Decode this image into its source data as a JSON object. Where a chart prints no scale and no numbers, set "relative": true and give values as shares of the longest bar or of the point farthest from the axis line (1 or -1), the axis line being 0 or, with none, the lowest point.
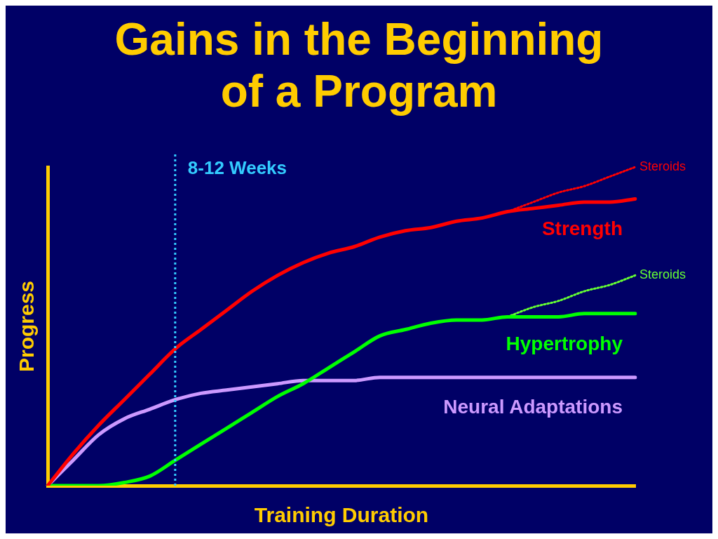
{
  "chart_data": {
    "type": "line",
    "title": "Gains in the Beginning of a Program",
    "xlabel": "Training Duration",
    "ylabel": "Progress",
    "relative": true,
    "legend": false,
    "grid": false,
    "categories": [
      null,
      null,
      null,
      null,
      null,
      null,
      null,
      null,
      null,
      null,
      null,
      null,
      null,
      null,
      null,
      null,
      null,
      null,
      null,
      null,
      null,
      null,
      null,
      null
    ],
    "series": [
      {
        "name": "Strength",
        "color": "#ff0000",
        "line_style": "solid",
        "values": [
          0,
          0.1,
          0.19,
          0.27,
          0.35,
          0.43,
          0.49,
          0.55,
          0.61,
          0.66,
          0.7,
          0.73,
          0.75,
          0.78,
          0.8,
          0.81,
          0.83,
          0.84,
          0.86,
          0.87,
          0.88,
          0.89,
          0.89,
          0.9
        ]
      },
      {
        "name": "Steroids",
        "color": "#ff0000",
        "line_style": "dotted",
        "values": [
          null,
          null,
          null,
          null,
          null,
          null,
          null,
          null,
          null,
          null,
          null,
          null,
          null,
          null,
          null,
          null,
          null,
          null,
          0.86,
          0.89,
          0.92,
          0.94,
          0.97,
          1.0
        ]
      },
      {
        "name": "Hypertrophy",
        "color": "#00ff00",
        "line_style": "solid",
        "values": [
          0,
          0,
          0,
          0.01,
          0.03,
          0.08,
          0.13,
          0.18,
          0.23,
          0.28,
          0.32,
          0.37,
          0.42,
          0.47,
          0.49,
          0.51,
          0.52,
          0.52,
          0.53,
          0.53,
          0.53,
          0.54,
          0.54,
          0.54
        ]
      },
      {
        "name": "Steroids",
        "color": "#66ff33",
        "line_style": "dotted",
        "values": [
          null,
          null,
          null,
          null,
          null,
          null,
          null,
          null,
          null,
          null,
          null,
          null,
          null,
          null,
          null,
          null,
          null,
          null,
          0.53,
          0.56,
          0.58,
          0.61,
          0.63,
          0.66
        ]
      },
      {
        "name": "Neural Adaptations",
        "color": "#cc99ff",
        "line_style": "solid",
        "values": [
          0,
          0.08,
          0.16,
          0.21,
          0.24,
          0.27,
          0.29,
          0.3,
          0.31,
          0.32,
          0.33,
          0.33,
          0.33,
          0.34,
          0.34,
          0.34,
          0.34,
          0.34,
          0.34,
          0.34,
          0.34,
          0.34,
          0.34,
          0.34
        ]
      }
    ],
    "annotations": [
      "8-12 Weeks"
    ]
  }
}
